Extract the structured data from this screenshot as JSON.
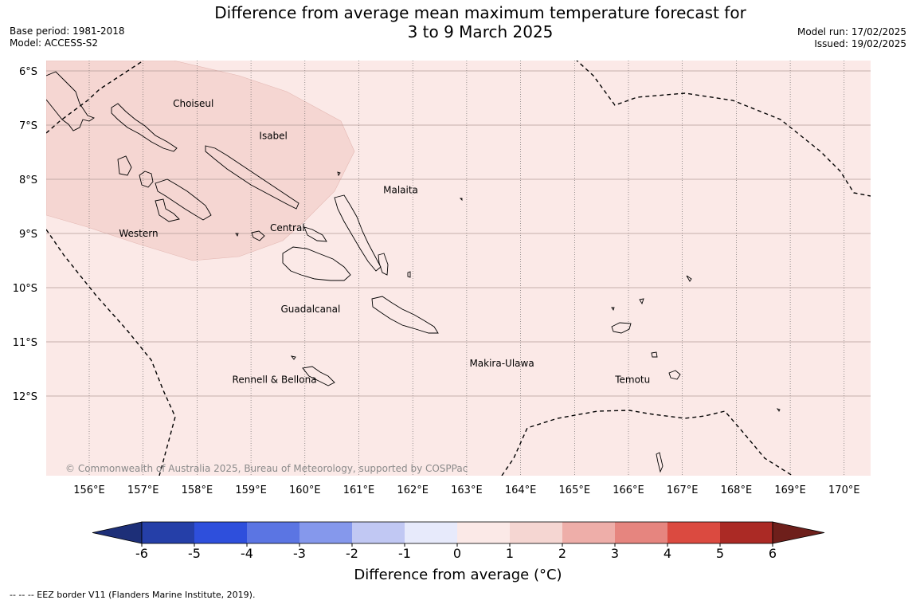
{
  "header": {
    "title_line1": "Difference from average mean maximum temperature forecast for",
    "title_line2": "3 to 9 March 2025",
    "base_period": "Base period: 1981-2018",
    "model": "Model: ACCESS-S2",
    "model_run": "Model run: 17/02/2025",
    "issued": "Issued: 19/02/2025"
  },
  "map": {
    "background_color": "#fbe9e7",
    "anomaly_patch_color": "#f5d6d2",
    "longitude_labels": [
      "156°E",
      "157°E",
      "158°E",
      "159°E",
      "160°E",
      "161°E",
      "162°E",
      "163°E",
      "164°E",
      "165°E",
      "166°E",
      "167°E",
      "168°E",
      "169°E",
      "170°E"
    ],
    "latitude_labels": [
      "6°S",
      "7°S",
      "8°S",
      "9°S",
      "10°S",
      "11°S",
      "12°S"
    ],
    "regions": [
      {
        "name": "Choiseul",
        "lon": 157.7,
        "lat": -6.6
      },
      {
        "name": "Isabel",
        "lon": 159.3,
        "lat": -7.2
      },
      {
        "name": "Malaita",
        "lon": 161.6,
        "lat": -8.2
      },
      {
        "name": "Western",
        "lon": 156.7,
        "lat": -9.0
      },
      {
        "name": "Central",
        "lon": 159.5,
        "lat": -8.9
      },
      {
        "name": "Guadalcanal",
        "lon": 159.7,
        "lat": -10.4
      },
      {
        "name": "Makira-Ulawa",
        "lon": 163.2,
        "lat": -11.4
      },
      {
        "name": "Rennell & Bellona",
        "lon": 158.8,
        "lat": -11.7
      },
      {
        "name": "Temotu",
        "lon": 165.9,
        "lat": -11.7
      }
    ],
    "copyright": "© Commonwealth of Australia 2025, Bureau of Meteorology, supported by COSPPac"
  },
  "legend": {
    "title": "Difference from average (",
    "unit": "°C)",
    "ticks": [
      "-6",
      "-5",
      "-4",
      "-3",
      "-2",
      "-1",
      "0",
      "1",
      "2",
      "3",
      "4",
      "5",
      "6"
    ],
    "colors": [
      "#253fa8",
      "#2e4fdc",
      "#5b75e3",
      "#8598ec",
      "#c1c8f3",
      "#e7eafb",
      "#fbe9e7",
      "#f5d6d2",
      "#eeaea9",
      "#e6857f",
      "#db4a40",
      "#ab2a25"
    ],
    "low_extend_color": "#1d2f78",
    "high_extend_color": "#6e1f1b"
  },
  "footnote": "--  --  -- EEZ border V11 (Flanders Marine Institute, 2019)."
}
